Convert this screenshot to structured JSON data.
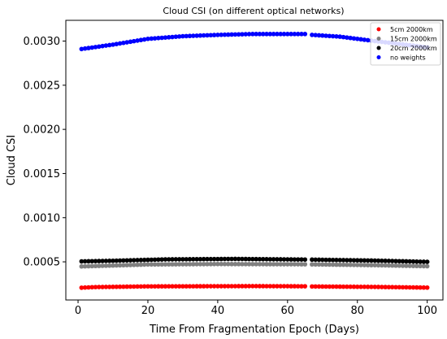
{
  "chart_data": {
    "type": "scatter",
    "title": "Cloud CSI (on different optical networks)",
    "xlabel": "Time From Fragmentation Epoch (Days)",
    "ylabel": "Cloud CSI",
    "xlim": [
      -3.5,
      104.5
    ],
    "ylim": [
      6.79e-05,
      0.003235
    ],
    "xticks": [
      0,
      20,
      40,
      60,
      80,
      100
    ],
    "yticks": [
      0.0005,
      0.001,
      0.0015,
      0.002,
      0.0025,
      0.003
    ],
    "xtick_labels": [
      "0",
      "20",
      "40",
      "60",
      "80",
      "100"
    ],
    "ytick_labels": [
      "0.0005",
      "0.0010",
      "0.0015",
      "0.0020",
      "0.0025",
      "0.0030"
    ],
    "grid": false,
    "legend_position": "top-right",
    "x_days": {
      "start": 1,
      "end": 100,
      "step": 1,
      "missing": [
        66
      ]
    },
    "series": [
      {
        "name": "5cm 2000km",
        "color": "#ff0000",
        "keypoints": [
          [
            1,
            0.000207
          ],
          [
            5,
            0.000214
          ],
          [
            20,
            0.000222
          ],
          [
            50,
            0.000225
          ],
          [
            65,
            0.000223
          ],
          [
            67,
            0.000221
          ],
          [
            85,
            0.000216
          ],
          [
            100,
            0.000208
          ]
        ]
      },
      {
        "name": "15cm 2000km",
        "color": "#808080",
        "keypoints": [
          [
            1,
            0.000448
          ],
          [
            10,
            0.000458
          ],
          [
            20,
            0.00047
          ],
          [
            40,
            0.000475
          ],
          [
            65,
            0.000472
          ],
          [
            67,
            0.000471
          ],
          [
            85,
            0.000462
          ],
          [
            100,
            0.00045
          ]
        ]
      },
      {
        "name": "20cm 2000km",
        "color": "#000000",
        "keypoints": [
          [
            1,
            0.000505
          ],
          [
            10,
            0.000512
          ],
          [
            25,
            0.000528
          ],
          [
            45,
            0.000533
          ],
          [
            65,
            0.000526
          ],
          [
            67,
            0.000525
          ],
          [
            85,
            0.000514
          ],
          [
            100,
            0.0005
          ]
        ]
      },
      {
        "name": "no weights",
        "color": "#0000ff",
        "keypoints": [
          [
            1,
            0.00291
          ],
          [
            10,
            0.00296
          ],
          [
            20,
            0.003025
          ],
          [
            30,
            0.003055
          ],
          [
            40,
            0.00307
          ],
          [
            50,
            0.00308
          ],
          [
            65,
            0.00308
          ],
          [
            67,
            0.00307
          ],
          [
            75,
            0.00305
          ],
          [
            85,
            0.003
          ],
          [
            100,
            0.00293
          ]
        ]
      }
    ]
  }
}
